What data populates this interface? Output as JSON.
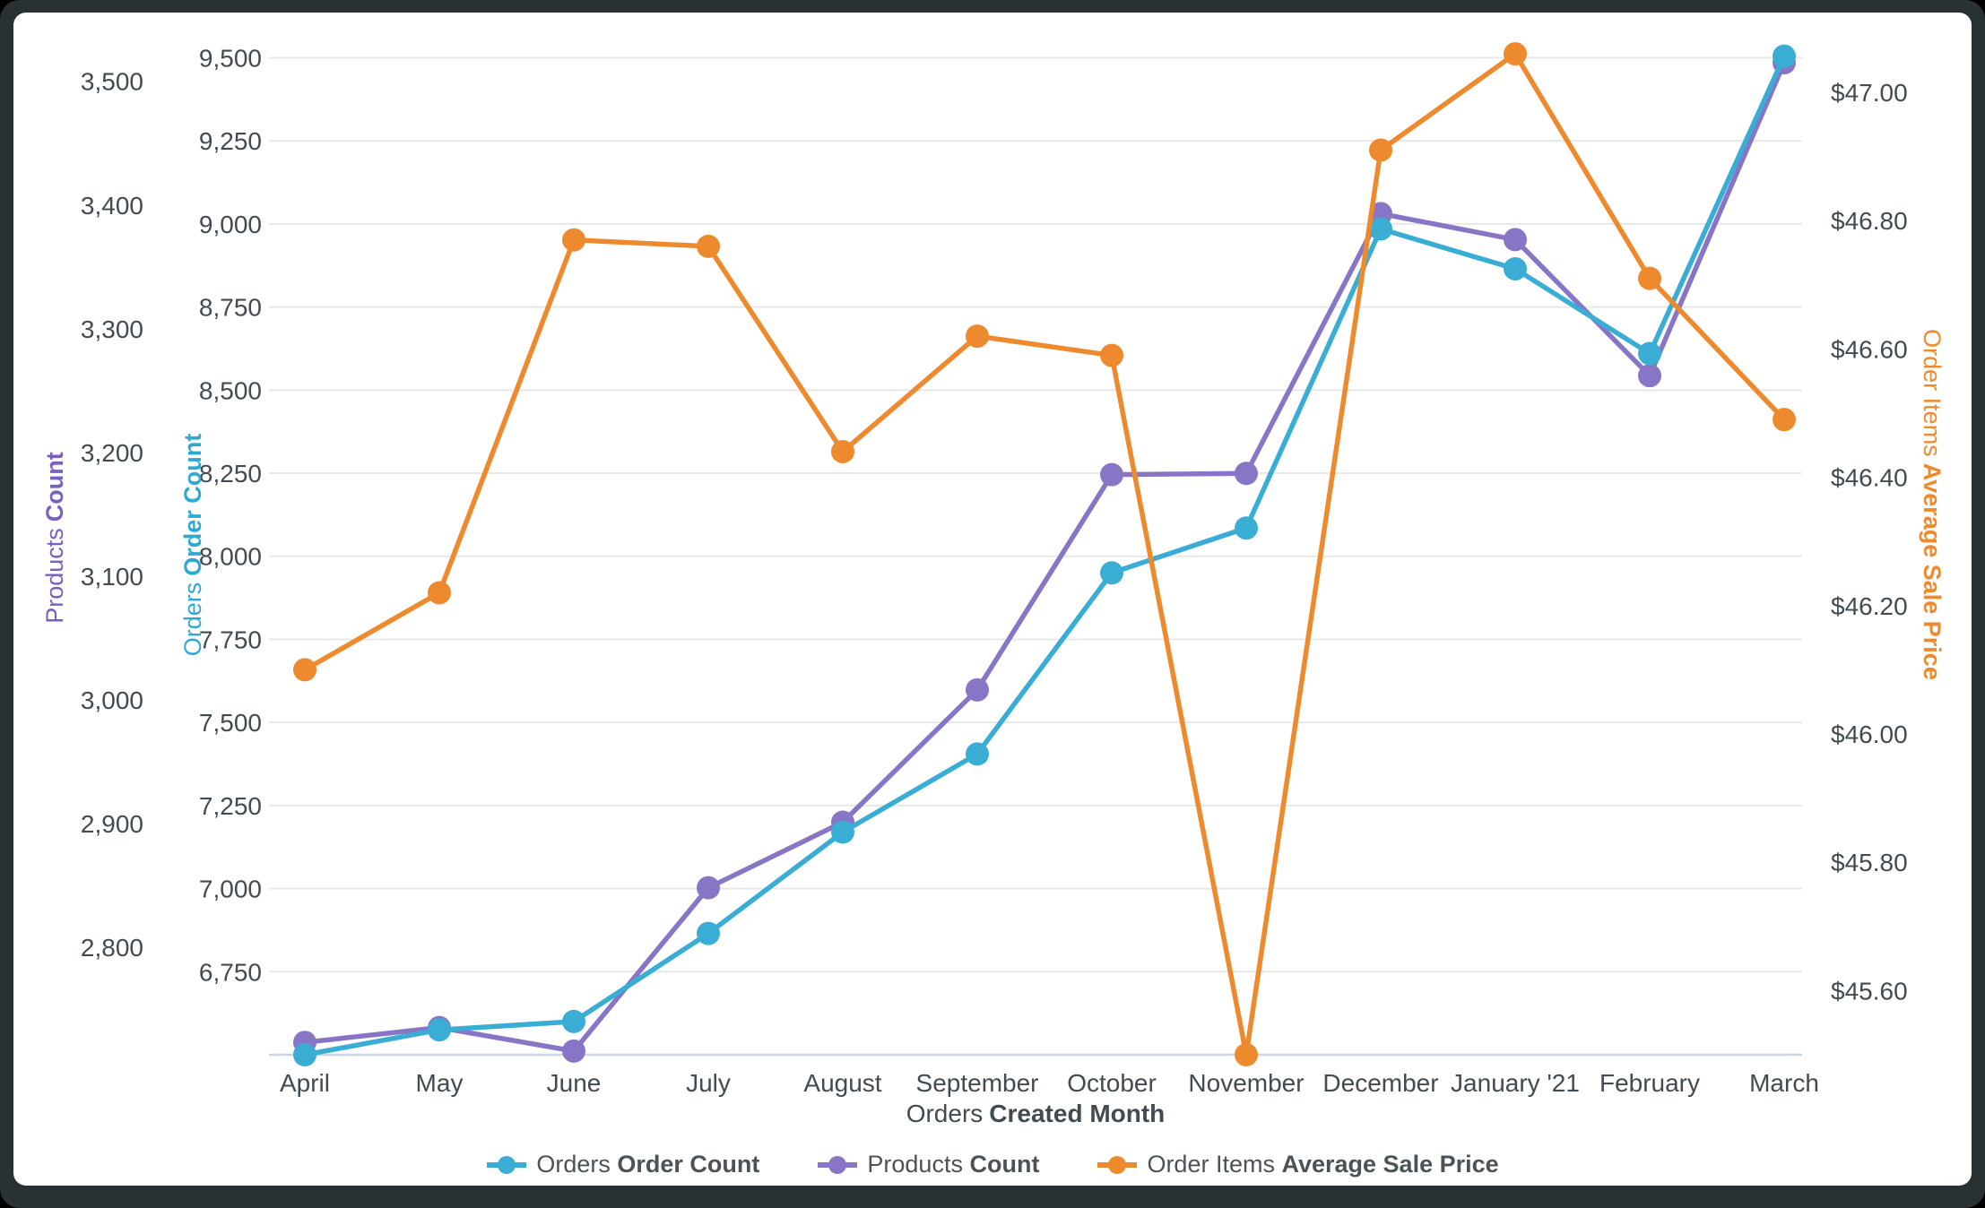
{
  "styles": {
    "grid_color": "#E8E8E8",
    "baseline_color": "#C9D5E2",
    "tick_color": "#424B52",
    "text_color": "#4B5359",
    "card_bg": "#FFFFFF",
    "frame_color": "#2A3134"
  },
  "chart_data": {
    "type": "line",
    "legend_position": "bottom",
    "grid": true,
    "categories": [
      "April",
      "May",
      "June",
      "July",
      "August",
      "September",
      "October",
      "November",
      "December",
      "January '21",
      "February",
      "March"
    ],
    "xlabel": {
      "prefix": "Orders",
      "bold": "Created Month"
    },
    "series": [
      {
        "id": "orders-order-count",
        "name": "Orders Order Count",
        "label_prefix": "Orders",
        "label_bold": "Order Count",
        "axis": "orders",
        "color": "#39ADD4",
        "values": [
          6500,
          6575,
          6600,
          6865,
          7170,
          7405,
          7950,
          8085,
          8985,
          8865,
          8610,
          9505
        ]
      },
      {
        "id": "products-count",
        "name": "Products Count",
        "label_prefix": "Products",
        "label_bold": "Count",
        "axis": "products",
        "color": "#8975C5",
        "values": [
          2723,
          2735,
          2716,
          2848,
          2901,
          3008,
          3182,
          3183,
          3393,
          3372,
          3262,
          3515
        ]
      },
      {
        "id": "order-items-average-sale-price",
        "name": "Order Items Average Sale Price",
        "label_prefix": "Order Items",
        "label_bold": "Average Sale Price",
        "axis": "price",
        "color": "#EE8A2E",
        "values": [
          46.1,
          46.22,
          46.77,
          46.76,
          46.44,
          46.62,
          46.59,
          45.5,
          46.91,
          47.06,
          46.71,
          46.49
        ]
      }
    ],
    "axes": {
      "orders": {
        "title_prefix": "Orders",
        "title_bold": "Order Count",
        "color": "#2FA9D2",
        "side": "left-inner",
        "bottom": 6500,
        "top": 9593,
        "ticks": [
          {
            "v": 6750,
            "label": "6,750"
          },
          {
            "v": 7000,
            "label": "7,000"
          },
          {
            "v": 7250,
            "label": "7,250"
          },
          {
            "v": 7500,
            "label": "7,500"
          },
          {
            "v": 7750,
            "label": "7,750"
          },
          {
            "v": 8000,
            "label": "8,000"
          },
          {
            "v": 8250,
            "label": "8,250"
          },
          {
            "v": 8500,
            "label": "8,500"
          },
          {
            "v": 8750,
            "label": "8,750"
          },
          {
            "v": 9000,
            "label": "9,000"
          },
          {
            "v": 9250,
            "label": "9,250"
          },
          {
            "v": 9500,
            "label": "9,500"
          }
        ]
      },
      "products": {
        "title_prefix": "Products",
        "title_bold": "Count",
        "color": "#7A5FC0",
        "side": "left-outer",
        "bottom": 2713,
        "top": 3544,
        "ticks": [
          {
            "v": 2800,
            "label": "2,800"
          },
          {
            "v": 2900,
            "label": "2,900"
          },
          {
            "v": 3000,
            "label": "3,000"
          },
          {
            "v": 3100,
            "label": "3,100"
          },
          {
            "v": 3200,
            "label": "3,200"
          },
          {
            "v": 3300,
            "label": "3,300"
          },
          {
            "v": 3400,
            "label": "3,400"
          },
          {
            "v": 3500,
            "label": "3,500"
          }
        ]
      },
      "price": {
        "title_prefix": "Order Items",
        "title_bold": "Average Sale Price",
        "color": "#EE8A2E",
        "side": "right",
        "bottom": 45.5,
        "top": 47.102,
        "ticks": [
          {
            "v": 45.6,
            "label": "$45.60"
          },
          {
            "v": 45.8,
            "label": "$45.80"
          },
          {
            "v": 46.0,
            "label": "$46.00"
          },
          {
            "v": 46.2,
            "label": "$46.20"
          },
          {
            "v": 46.4,
            "label": "$46.40"
          },
          {
            "v": 46.6,
            "label": "$46.60"
          },
          {
            "v": 46.8,
            "label": "$46.80"
          },
          {
            "v": 47.0,
            "label": "$47.00"
          }
        ]
      }
    }
  }
}
